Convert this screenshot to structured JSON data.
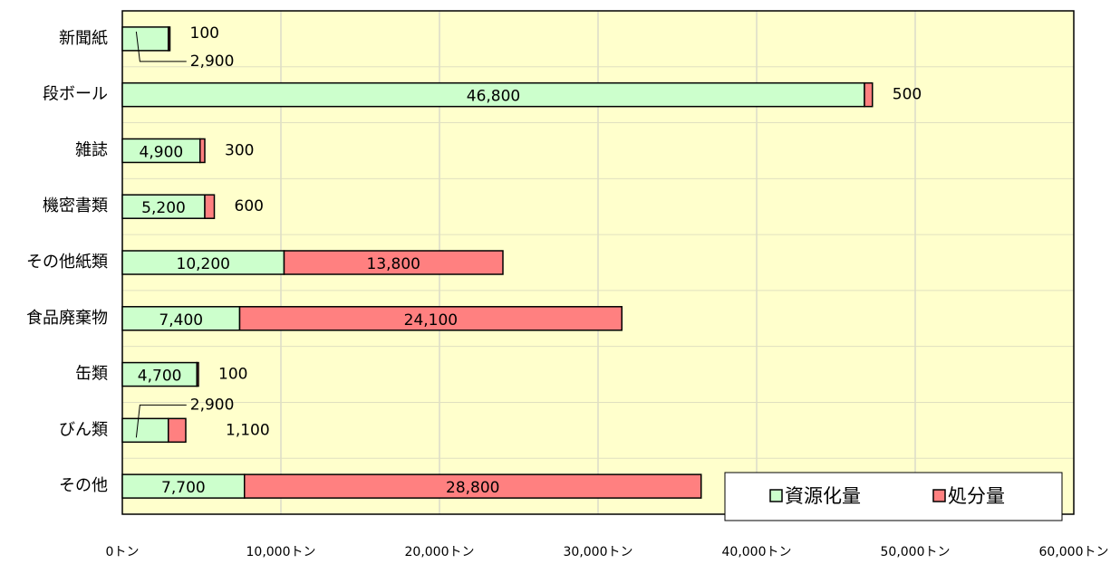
{
  "chart_data": {
    "type": "stacked-bar-horizontal",
    "categories": [
      "新聞紙",
      "段ボール",
      "雑誌",
      "機密書類",
      "その他紙類",
      "食品廃棄物",
      "缶類",
      "びん類",
      "その他"
    ],
    "series": [
      {
        "name": "資源化量",
        "color": "#ccffcc",
        "values": [
          2900,
          46800,
          4900,
          5200,
          10200,
          7400,
          4700,
          2900,
          7700
        ],
        "value_labels": [
          "2,900",
          "46,800",
          "4,900",
          "5,200",
          "10,200",
          "7,400",
          "4,700",
          "2,900",
          "7,700"
        ]
      },
      {
        "name": "処分量",
        "color": "#ff8080",
        "values": [
          100,
          500,
          300,
          600,
          13800,
          24100,
          100,
          1100,
          28800
        ],
        "value_labels": [
          "100",
          "500",
          "300",
          "600",
          "13,800",
          "24,100",
          "100",
          "1,100",
          "28,800"
        ]
      }
    ],
    "xlim": [
      0,
      60000
    ],
    "xticks": [
      {
        "value": 0,
        "label": "0トン"
      },
      {
        "value": 10000,
        "label": "10,000トン"
      },
      {
        "value": 20000,
        "label": "20,000トン"
      },
      {
        "value": 30000,
        "label": "30,000トン"
      },
      {
        "value": 40000,
        "label": "40,000トン"
      },
      {
        "value": 50000,
        "label": "50,000トン"
      },
      {
        "value": 60000,
        "label": "60,000トン"
      }
    ],
    "background": "#ffffcc",
    "grid": true,
    "legend": "lower right"
  }
}
